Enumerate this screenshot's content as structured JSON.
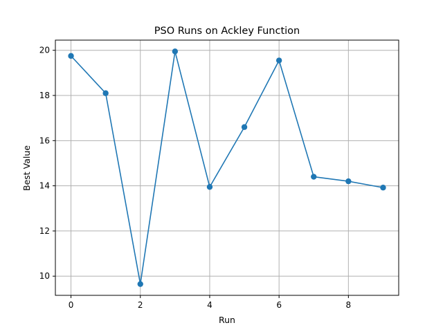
{
  "chart_data": {
    "type": "line",
    "title": "PSO Runs on Ackley Function",
    "xlabel": "Run",
    "ylabel": "Best Value",
    "x": [
      0,
      1,
      2,
      3,
      4,
      5,
      6,
      7,
      8,
      9
    ],
    "series": [
      {
        "values": [
          19.75,
          18.1,
          9.65,
          19.95,
          13.95,
          16.6,
          19.55,
          14.4,
          14.2,
          13.92
        ]
      }
    ],
    "xlim": [
      -0.45,
      9.45
    ],
    "ylim": [
      9.15,
      20.45
    ],
    "xticks": [
      0,
      2,
      4,
      6,
      8
    ],
    "yticks": [
      10,
      12,
      14,
      16,
      18,
      20
    ],
    "xtick_labels": [
      "0",
      "2",
      "4",
      "6",
      "8"
    ],
    "ytick_labels": [
      "10",
      "12",
      "14",
      "16",
      "18",
      "20"
    ],
    "grid": true,
    "marker": "circle",
    "colors": {
      "line": "#1f77b4",
      "grid": "#b0b0b0"
    }
  }
}
